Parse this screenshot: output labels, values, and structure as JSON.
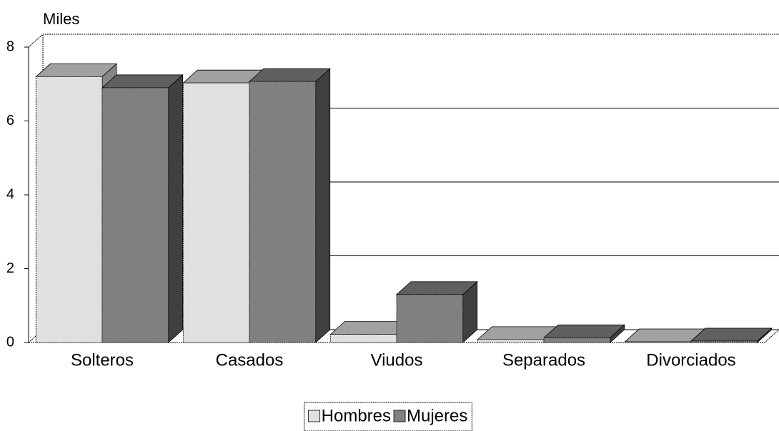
{
  "chart_data": {
    "type": "bar3d",
    "y_label": "Miles",
    "categories": [
      "Solteros",
      "Casados",
      "Viudos",
      "Separados",
      "Divorciados"
    ],
    "series": [
      {
        "name": "Hombres",
        "color": "#e0e0e0",
        "values": [
          7.2,
          7.03,
          0.22,
          0.08,
          0.02
        ]
      },
      {
        "name": "Mujeres",
        "color": "#808080",
        "values": [
          6.9,
          7.07,
          1.3,
          0.13,
          0.04
        ]
      }
    ],
    "ylim": [
      0,
      8
    ],
    "yticks": [
      0,
      2,
      4,
      6,
      8
    ],
    "grid": true,
    "legend": "bottom"
  }
}
